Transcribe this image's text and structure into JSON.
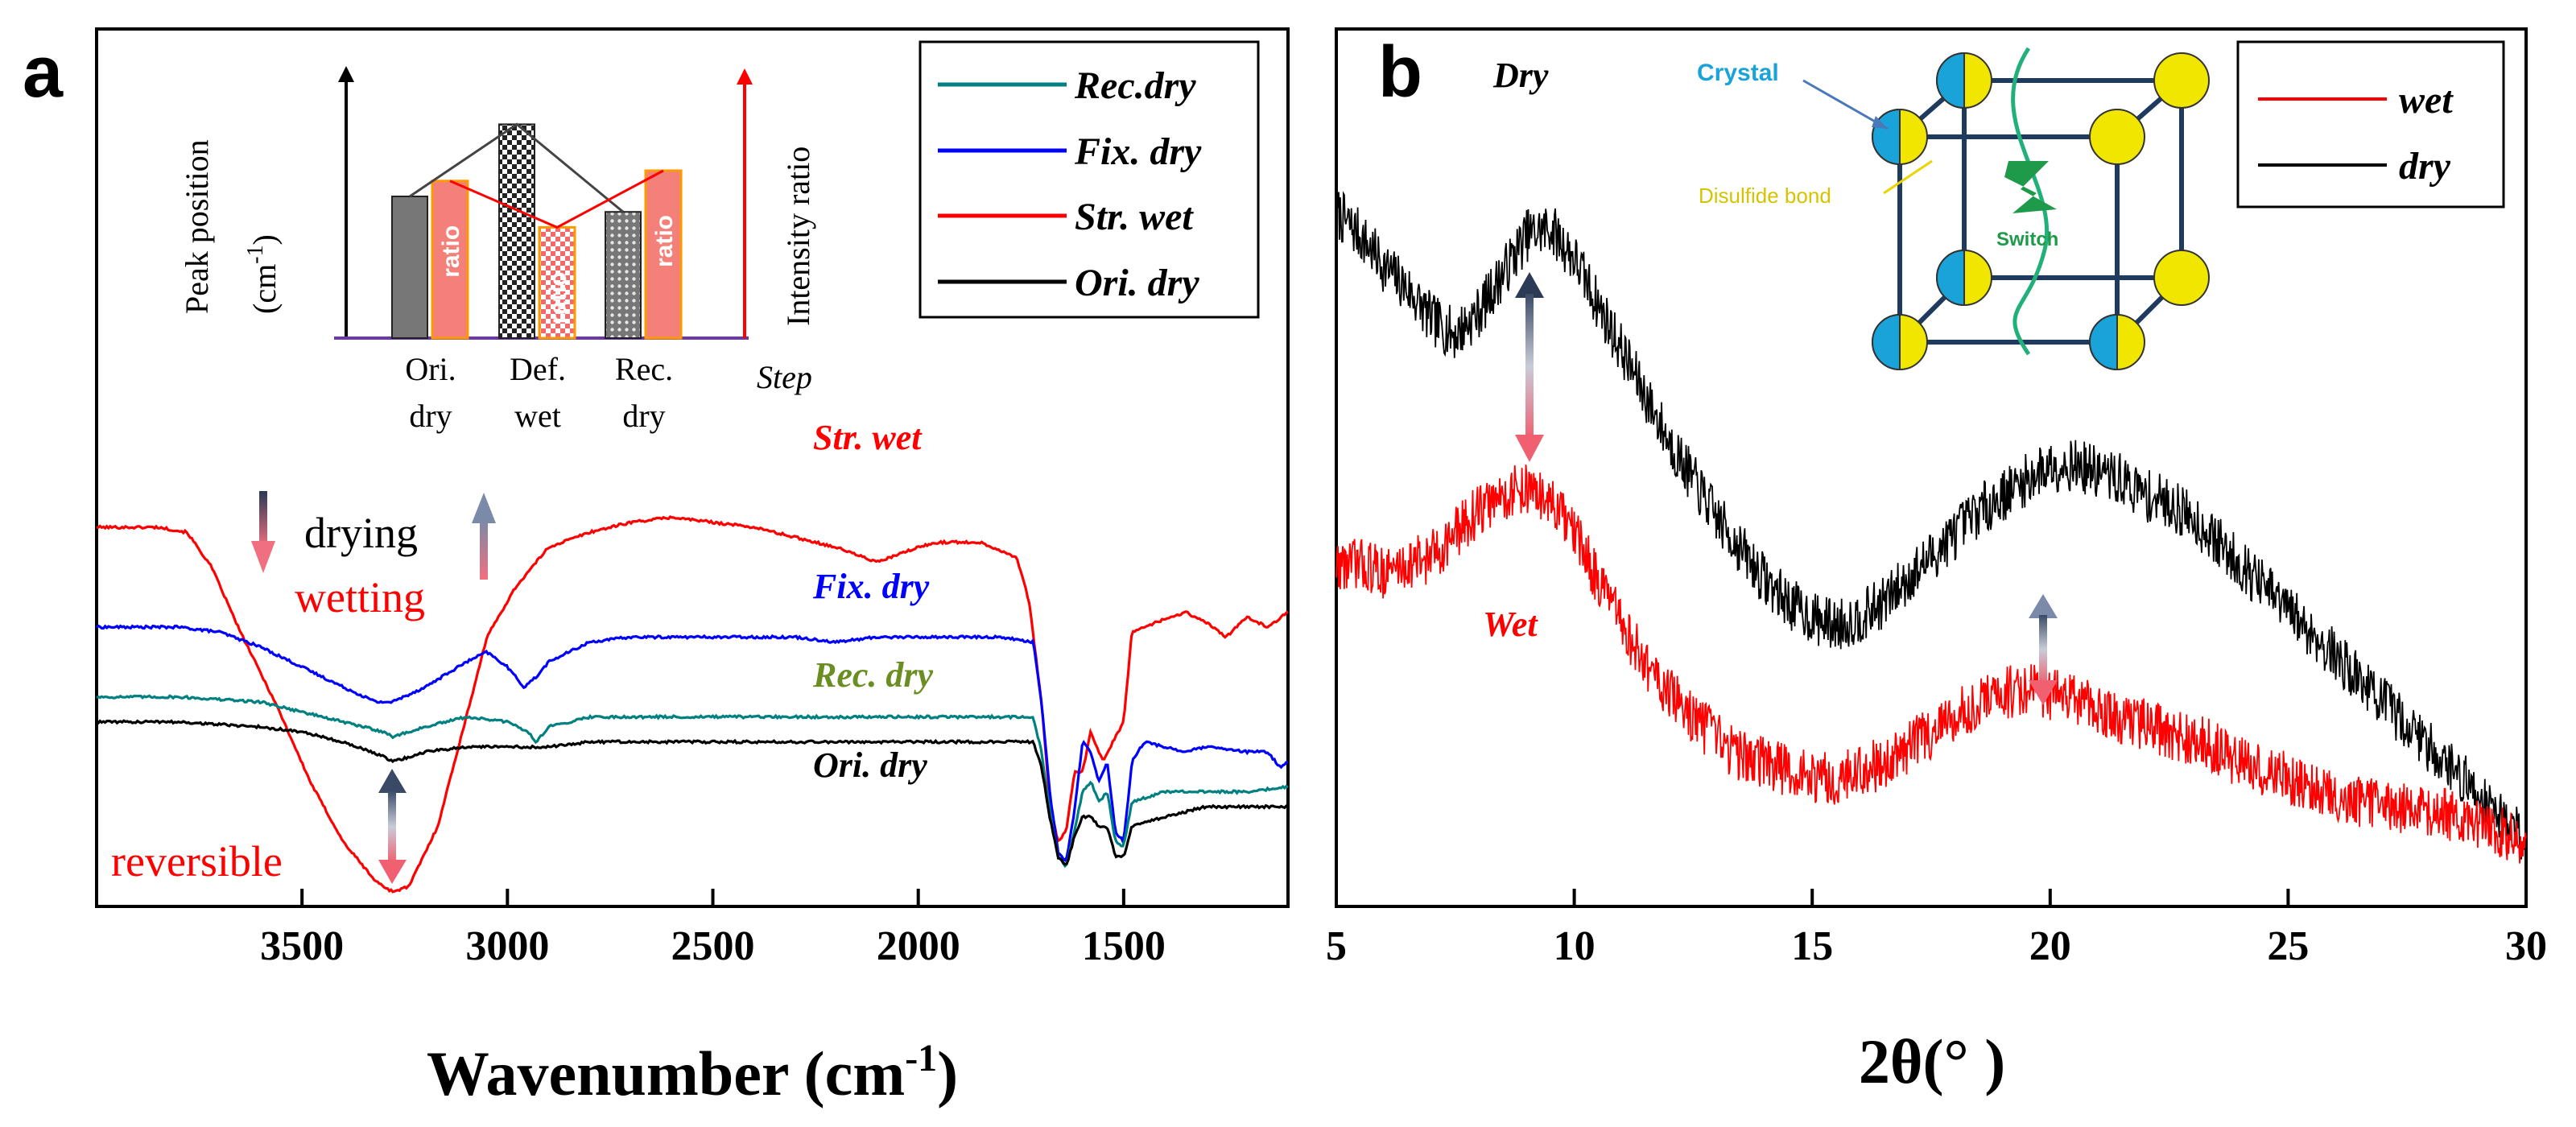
{
  "chart_data": [
    {
      "panel": "a",
      "type": "line",
      "title": "",
      "xlabel": "Wavenumber (cm",
      "xlabel_sup": "-1",
      "xlabel_end": ")",
      "ylabel": "",
      "xlim": [
        4000,
        1100
      ],
      "x_reversed": true,
      "ylim": [
        0,
        100
      ],
      "xticks": [
        3500,
        3000,
        2500,
        2000,
        1500
      ],
      "legend": {
        "position": "top-right",
        "entries": [
          {
            "name": "Rec.dry",
            "color": "#008080"
          },
          {
            "name": "Fix. dry",
            "color": "#0000ff"
          },
          {
            "name": "Str. wet",
            "color": "#ff0000"
          },
          {
            "name": "Ori. dry",
            "color": "#000000"
          }
        ]
      },
      "series": [
        {
          "name": "Str. wet",
          "color": "#ff0000",
          "x": [
            4000,
            3850,
            3780,
            3720,
            3650,
            3560,
            3480,
            3400,
            3320,
            3280,
            3240,
            3170,
            3100,
            3050,
            2980,
            2900,
            2800,
            2700,
            2600,
            2500,
            2400,
            2300,
            2200,
            2100,
            2000,
            1950,
            1850,
            1760,
            1730,
            1700,
            1680,
            1660,
            1640,
            1620,
            1600,
            1580,
            1550,
            1520,
            1500,
            1480,
            1420,
            1350,
            1300,
            1250,
            1200,
            1150,
            1100
          ],
          "y": [
            75,
            75,
            74,
            67,
            54,
            39,
            24,
            12,
            4,
            2,
            3,
            15,
            37,
            53,
            63,
            71,
            74,
            76,
            77,
            76,
            75,
            73,
            71,
            68,
            71,
            72,
            72,
            69,
            60,
            40,
            20,
            12,
            14,
            26,
            26,
            34,
            28,
            33,
            36,
            54,
            56,
            58,
            56,
            53,
            57,
            55,
            58
          ]
        },
        {
          "name": "Fix. dry",
          "color": "#0000ff",
          "x": [
            4000,
            3800,
            3700,
            3600,
            3500,
            3400,
            3320,
            3280,
            3200,
            3100,
            3050,
            3000,
            2960,
            2930,
            2900,
            2850,
            2800,
            2700,
            2600,
            2500,
            2400,
            2300,
            2200,
            2100,
            2000,
            1900,
            1800,
            1720,
            1700,
            1680,
            1660,
            1640,
            1620,
            1600,
            1580,
            1560,
            1540,
            1520,
            1500,
            1480,
            1450,
            1400,
            1350,
            1300,
            1200,
            1150,
            1120,
            1100
          ],
          "y": [
            55,
            55,
            54,
            51,
            47,
            43,
            40,
            40,
            43,
            48,
            50,
            47,
            43,
            45,
            48,
            50,
            52,
            53,
            53,
            53,
            53,
            53,
            52,
            53,
            53,
            53,
            53,
            52,
            40,
            22,
            10,
            8,
            18,
            32,
            30,
            24,
            28,
            14,
            12,
            28,
            32,
            31,
            30,
            31,
            30,
            30,
            27,
            28
          ]
        },
        {
          "name": "Rec. dry",
          "color": "#008080",
          "x": [
            4000,
            3800,
            3600,
            3500,
            3400,
            3300,
            3280,
            3200,
            3100,
            3000,
            2950,
            2930,
            2900,
            2850,
            2800,
            2600,
            2400,
            2200,
            2000,
            1800,
            1720,
            1700,
            1680,
            1660,
            1640,
            1620,
            1600,
            1580,
            1560,
            1540,
            1520,
            1500,
            1480,
            1400,
            1300,
            1200,
            1100
          ],
          "y": [
            41,
            41,
            40,
            38,
            36,
            34,
            33,
            35,
            37,
            36,
            34,
            32,
            35,
            36,
            37,
            37,
            37,
            37,
            37,
            37,
            37,
            30,
            18,
            9,
            7,
            14,
            22,
            24,
            20,
            22,
            12,
            11,
            20,
            22,
            22,
            22,
            23
          ]
        },
        {
          "name": "Ori. dry",
          "color": "#000000",
          "x": [
            4000,
            3800,
            3600,
            3500,
            3400,
            3300,
            3280,
            3200,
            3100,
            3000,
            2900,
            2800,
            2600,
            2400,
            2200,
            2000,
            1800,
            1720,
            1700,
            1680,
            1660,
            1640,
            1620,
            1600,
            1580,
            1560,
            1540,
            1520,
            1500,
            1480,
            1400,
            1300,
            1200,
            1100
          ],
          "y": [
            36,
            36,
            35,
            34,
            32,
            29,
            28,
            30,
            31,
            31,
            31,
            32,
            32,
            32,
            32,
            32,
            32,
            32,
            27,
            17,
            9,
            7,
            13,
            17,
            17,
            15,
            15,
            9,
            9,
            15,
            17,
            19,
            19,
            19
          ]
        }
      ],
      "curve_labels": [
        "Str. wet",
        "Fix. dry",
        "Rec. dry",
        "Ori. dry"
      ],
      "annotations": {
        "drying": "drying",
        "wetting": "wetting",
        "reversible": "reversible"
      },
      "inset": {
        "type": "bar",
        "ylabel_left": "Peak position",
        "ylabel_left2": "(cm",
        "ylabel_left_sup": "-1",
        "ylabel_left_end": ")",
        "ylabel_right": "Intensity ratio",
        "xlabel": "Step",
        "categories": [
          [
            "Ori.",
            "dry"
          ],
          [
            "Def.",
            "wet"
          ],
          [
            "Rec.",
            "dry"
          ]
        ],
        "peak_position": [
          55,
          83,
          49
        ],
        "intensity_ratio": [
          61,
          43,
          65
        ],
        "bar_label": "ratio",
        "ylim": [
          0,
          100
        ]
      }
    },
    {
      "panel": "b",
      "type": "line",
      "title": "",
      "xlabel": "2θ(°  )",
      "ylabel": "",
      "xlim": [
        5,
        30
      ],
      "ylim": [
        0,
        100
      ],
      "xticks": [
        5,
        10,
        15,
        20,
        25,
        30
      ],
      "legend": {
        "position": "top-right",
        "entries": [
          {
            "name": "wet",
            "color": "#ff0000"
          },
          {
            "name": "dry",
            "color": "#000000"
          }
        ]
      },
      "series": [
        {
          "name": "dry",
          "color": "#000000",
          "x": [
            5,
            5.5,
            6,
            6.5,
            7,
            7.5,
            8,
            8.5,
            9,
            9.5,
            10,
            10.5,
            11,
            11.5,
            12,
            12.5,
            13,
            13.5,
            14,
            14.5,
            15,
            15.5,
            16,
            16.5,
            17,
            17.5,
            18,
            18.5,
            19,
            19.5,
            20,
            20.5,
            21,
            21.5,
            22,
            22.5,
            23,
            23.5,
            24,
            24.5,
            25,
            25.5,
            26,
            26.5,
            27,
            27.5,
            28,
            28.5,
            29,
            29.5,
            30
          ],
          "y": [
            88,
            85,
            81,
            78,
            74,
            72,
            75,
            80,
            85,
            86,
            82,
            76,
            70,
            64,
            58,
            53,
            48,
            44,
            40,
            37,
            35,
            34,
            35,
            37,
            40,
            43,
            46,
            49,
            51,
            53,
            55,
            55,
            54,
            53,
            51,
            50,
            48,
            45,
            42,
            39,
            36,
            33,
            30,
            27,
            24,
            21,
            18,
            15,
            12,
            9,
            6
          ]
        },
        {
          "name": "wet",
          "color": "#ff0000",
          "x": [
            5,
            5.5,
            6,
            6.5,
            7,
            7.5,
            8,
            8.5,
            9,
            9.5,
            10,
            10.5,
            11,
            11.5,
            12,
            12.5,
            13,
            13.5,
            14,
            14.5,
            15,
            15.5,
            16,
            16.5,
            17,
            17.5,
            18,
            18.5,
            19,
            19.5,
            20,
            20.5,
            21,
            21.5,
            22,
            22.5,
            23,
            23.5,
            24,
            24.5,
            25,
            25.5,
            26,
            26.5,
            27,
            27.5,
            28,
            28.5,
            29,
            29.5,
            30
          ],
          "y": [
            42,
            42,
            41,
            42,
            43,
            46,
            49,
            51,
            52,
            50,
            46,
            40,
            34,
            29,
            25,
            22,
            19,
            17,
            16,
            15,
            14,
            14,
            15,
            16,
            18,
            20,
            22,
            24,
            25,
            26,
            25,
            24,
            23,
            22,
            21,
            20,
            19,
            18,
            16,
            15,
            14,
            13,
            12,
            11,
            11,
            10,
            10,
            9,
            8,
            7,
            5
          ]
        }
      ],
      "curve_labels": [
        "Dry",
        "Wet"
      ],
      "inset": {
        "crystal_label": "Crystal",
        "disulfide_label": "Disulfide bond",
        "switch_label": "Switch"
      }
    }
  ],
  "panel_labels": {
    "a": "a",
    "b": "b"
  }
}
